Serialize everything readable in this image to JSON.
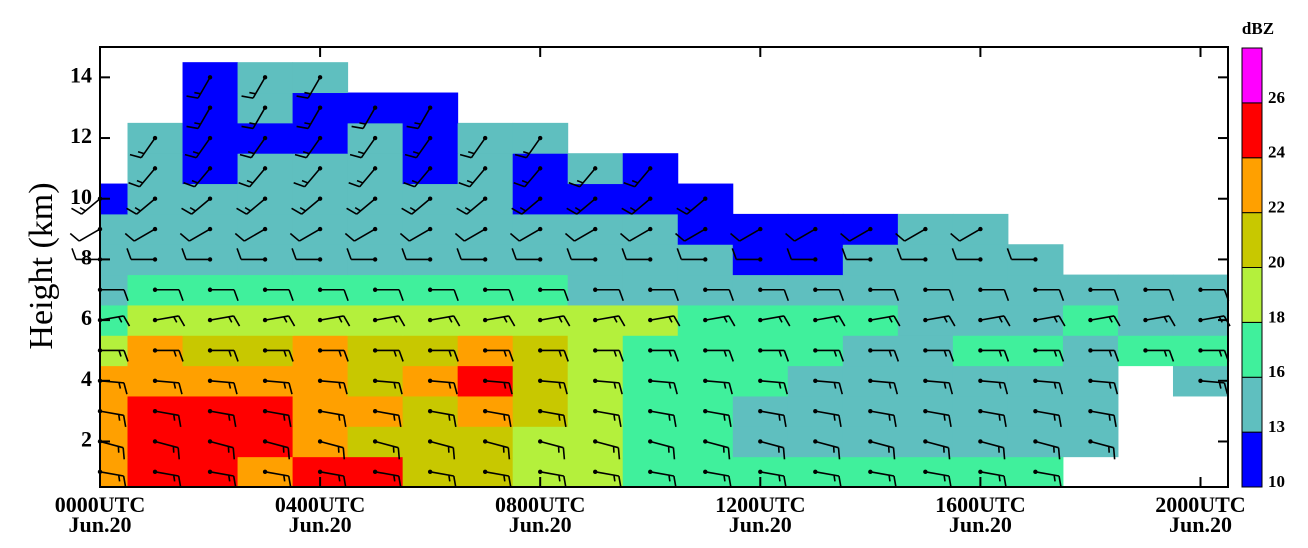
{
  "chart_data": {
    "type": "heatmap",
    "ylabel": "Height (km)",
    "colorbar_label": "dBZ",
    "x": [
      0,
      1,
      2,
      3,
      4,
      5,
      6,
      7,
      8,
      9,
      10,
      11,
      12,
      13,
      14,
      15,
      16,
      17,
      18,
      19,
      20
    ],
    "y": [
      1,
      2,
      3,
      4,
      5,
      6,
      7,
      8,
      9,
      10,
      11,
      12,
      13,
      14
    ],
    "xlim": [
      0,
      20.5
    ],
    "ylim": [
      0.5,
      15
    ],
    "xticks": [
      {
        "value": 0,
        "label": "0000UTC Jun.20"
      },
      {
        "value": 4,
        "label": "0400UTC Jun.20"
      },
      {
        "value": 8,
        "label": "0800UTC Jun.20"
      },
      {
        "value": 12,
        "label": "1200UTC Jun.20"
      },
      {
        "value": 16,
        "label": "1600UTC Jun.20"
      },
      {
        "value": 20,
        "label": "2000UTC Jun.20"
      }
    ],
    "yticks": [
      2,
      4,
      6,
      8,
      10,
      12,
      14
    ],
    "levels": [
      10,
      13,
      16,
      18,
      20,
      22,
      24,
      26
    ],
    "colors": [
      "#0000ff",
      "#5fbfbf",
      "#40f09c",
      "#b4f03c",
      "#c8c800",
      "#ffa000",
      "#ff0000",
      "#ff00ff"
    ],
    "z": [
      [
        23,
        25,
        25,
        23,
        25,
        24,
        21,
        21,
        19,
        19,
        17,
        17,
        17,
        17,
        17,
        17,
        17,
        17,
        null,
        null,
        null
      ],
      [
        23,
        25,
        25,
        25,
        23,
        21,
        21,
        21,
        19,
        19,
        17,
        17,
        15,
        15,
        15,
        15,
        15,
        15,
        15,
        null,
        null
      ],
      [
        23,
        24,
        25,
        25,
        23,
        23,
        21,
        23,
        21,
        19,
        17,
        17,
        15,
        15,
        15,
        15,
        15,
        15,
        15,
        null,
        null
      ],
      [
        23,
        23,
        23,
        23,
        23,
        21,
        23,
        25,
        21,
        19,
        17,
        17,
        17,
        15,
        15,
        15,
        15,
        15,
        15,
        null,
        15
      ],
      [
        19,
        22,
        21,
        21,
        22,
        21,
        21,
        23,
        21,
        19,
        17,
        17,
        17,
        17,
        15,
        15,
        17,
        17,
        15,
        17,
        17
      ],
      [
        17,
        19,
        19,
        19,
        19,
        19,
        19,
        19,
        19,
        19,
        19,
        17,
        17,
        17,
        17,
        15,
        15,
        15,
        17,
        15,
        15
      ],
      [
        15,
        17,
        17,
        17,
        17,
        17,
        17,
        17,
        17,
        15,
        15,
        15,
        15,
        15,
        15,
        15,
        15,
        15,
        15,
        15,
        15
      ],
      [
        15,
        15,
        15,
        15,
        15,
        15,
        15,
        15,
        15,
        15,
        15,
        15,
        12,
        12,
        15,
        15,
        15,
        15,
        null,
        null,
        null
      ],
      [
        15,
        15,
        15,
        15,
        15,
        15,
        15,
        15,
        15,
        15,
        15,
        12,
        12,
        12,
        12,
        15,
        15,
        null,
        null,
        null,
        null
      ],
      [
        11,
        15,
        15,
        15,
        15,
        15,
        15,
        15,
        12,
        12,
        12,
        12,
        null,
        null,
        null,
        null,
        null,
        null,
        null,
        null,
        null
      ],
      [
        null,
        15,
        12,
        15,
        15,
        15,
        12,
        15,
        12,
        15,
        12,
        null,
        null,
        null,
        null,
        null,
        null,
        null,
        null,
        null,
        null
      ],
      [
        null,
        15,
        12,
        12,
        12,
        15,
        12,
        15,
        15,
        null,
        null,
        null,
        null,
        null,
        null,
        null,
        null,
        null,
        null,
        null,
        null
      ],
      [
        null,
        null,
        12,
        15,
        12,
        12,
        12,
        null,
        null,
        null,
        null,
        null,
        null,
        null,
        null,
        null,
        null,
        null,
        null,
        null,
        null
      ],
      [
        null,
        null,
        12,
        15,
        15,
        null,
        null,
        null,
        null,
        null,
        null,
        null,
        null,
        null,
        null,
        null,
        null,
        null,
        null,
        null,
        null
      ]
    ],
    "wind_direction": [
      100,
      105,
      100,
      95,
      90,
      80,
      90,
      270,
      240,
      230,
      220,
      215,
      210,
      210
    ],
    "wind_speed": [
      15,
      15,
      15,
      15,
      15,
      15,
      10,
      10,
      10,
      15,
      15,
      15,
      15,
      15
    ]
  }
}
